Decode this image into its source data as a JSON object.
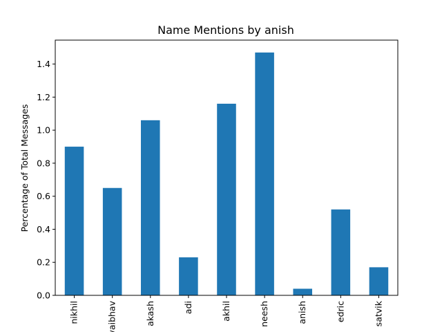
{
  "chart_data": {
    "type": "bar",
    "title": "Name Mentions by anish",
    "xlabel": "",
    "ylabel": "Percentage of Total Messages",
    "categories": [
      "nikhil",
      "vaibhav",
      "akash",
      "adi",
      "akhil",
      "neesh",
      "anish",
      "edric",
      "satvik"
    ],
    "values": [
      0.9,
      0.65,
      1.06,
      0.23,
      1.16,
      1.47,
      0.04,
      0.52,
      0.17
    ],
    "ylim": [
      0,
      1.545
    ],
    "yticks": [
      "0.0",
      "0.2",
      "0.4",
      "0.6",
      "0.8",
      "1.0",
      "1.2",
      "1.4"
    ],
    "bar_color": "#1f77b4",
    "grid": false
  }
}
